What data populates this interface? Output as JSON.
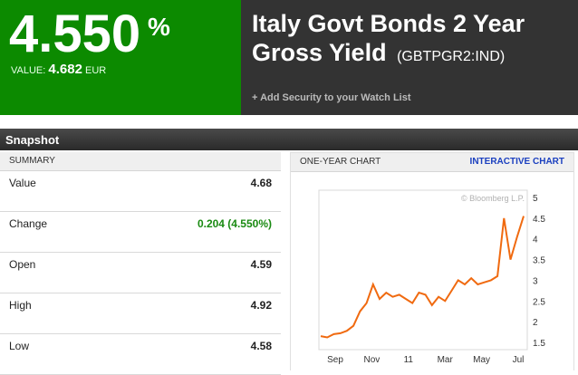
{
  "header": {
    "yield": "4.550",
    "percent_sign": "%",
    "value_label": "VALUE:",
    "value": "4.682",
    "currency": "EUR",
    "title_line1": "Italy Govt Bonds 2 Year",
    "title_line2": "Gross Yield",
    "ticker": "(GBTPGR2:IND)",
    "watchlist_link": "+ Add Security to your Watch List",
    "colors": {
      "green_panel": "#0c8a00",
      "dark_panel": "#333333"
    }
  },
  "snapshot": {
    "title": "Snapshot"
  },
  "summary": {
    "heading": "SUMMARY",
    "rows": [
      {
        "label": "Value",
        "value": "4.68",
        "positive": false
      },
      {
        "label": "Change",
        "value": "0.204 (4.550%)",
        "positive": true
      },
      {
        "label": "Open",
        "value": "4.59",
        "positive": false
      },
      {
        "label": "High",
        "value": "4.92",
        "positive": false
      },
      {
        "label": "Low",
        "value": "4.58",
        "positive": false
      }
    ]
  },
  "chart": {
    "heading": "ONE-YEAR CHART",
    "interactive_link": "INTERACTIVE CHART",
    "watermark": "© Bloomberg L.P."
  },
  "chart_data": {
    "type": "line",
    "x": [
      "Aug",
      "Sep",
      "Sep",
      "Oct",
      "Oct",
      "Nov",
      "Nov",
      "Nov",
      "Dec",
      "Dec",
      "Dec",
      "Jan",
      "Jan",
      "Jan",
      "Feb",
      "Feb",
      "Mar",
      "Mar",
      "Mar",
      "Apr",
      "Apr",
      "May",
      "May",
      "May",
      "Jun",
      "Jun",
      "Jun",
      "Jun",
      "Jul",
      "Jul",
      "Jul",
      "Jul"
    ],
    "values": [
      1.65,
      1.62,
      1.7,
      1.72,
      1.78,
      1.9,
      2.25,
      2.45,
      2.9,
      2.55,
      2.7,
      2.6,
      2.65,
      2.55,
      2.45,
      2.7,
      2.65,
      2.4,
      2.6,
      2.5,
      2.75,
      3.0,
      2.9,
      3.05,
      2.9,
      2.95,
      3.0,
      3.1,
      4.5,
      3.5,
      4.05,
      4.55
    ],
    "xticks": [
      "Sep",
      "Nov",
      "11",
      "Mar",
      "May",
      "Jul"
    ],
    "yticks": [
      "1.5",
      "2",
      "2.5",
      "3",
      "3.5",
      "4",
      "4.5",
      "5"
    ],
    "ylim": [
      1.5,
      5
    ],
    "series_color": "#f06a10",
    "grid": false
  }
}
